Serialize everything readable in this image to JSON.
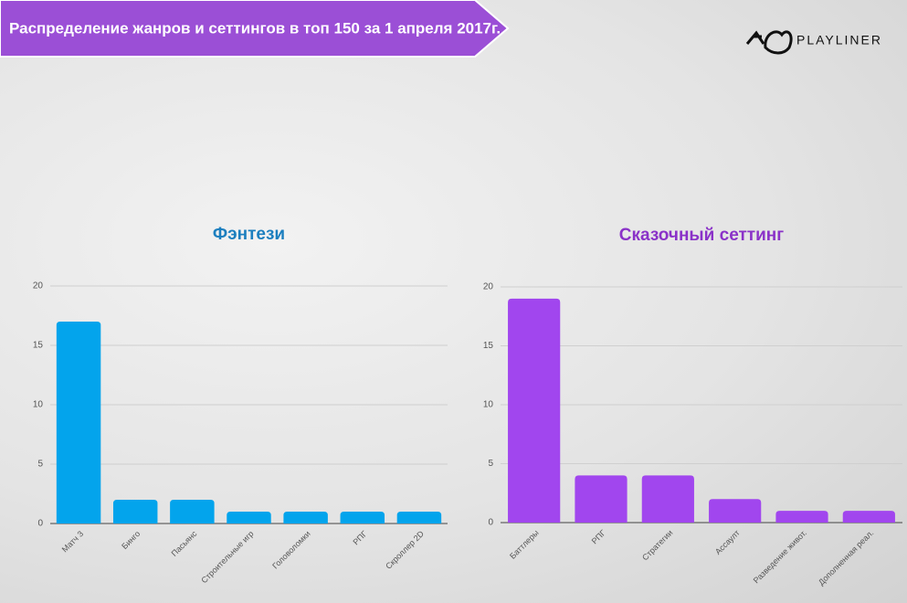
{
  "header": {
    "title": "Распределение жанров и сеттингов в топ 150 за 1 апреля 2017г.",
    "logo": "PLAYLINER"
  },
  "chart_data": [
    {
      "type": "bar",
      "title": "Фэнтези",
      "title_color": "#1c7fbf",
      "color": "#03a4ec",
      "categories": [
        "Матч 3",
        "Бинго",
        "Пасьянс",
        "Строительные игр",
        "Головоломки",
        "РПГ",
        "Скроллер 2D"
      ],
      "values": [
        17,
        2,
        2,
        1,
        1,
        1,
        1
      ],
      "ylim": [
        0,
        20
      ],
      "yticks": [
        0,
        5,
        10,
        15,
        20
      ],
      "grid": true
    },
    {
      "type": "bar",
      "title": "Сказочный сеттинг",
      "title_color": "#8a32c8",
      "color": "#a146ee",
      "categories": [
        "Баттлеры",
        "РПГ",
        "Стратегии",
        "Ассаулт",
        "Разведение живот.",
        "Дополненная реал."
      ],
      "values": [
        19,
        4,
        4,
        2,
        1,
        1
      ],
      "ylim": [
        0,
        20
      ],
      "yticks": [
        0,
        5,
        10,
        15,
        20
      ],
      "grid": true
    }
  ]
}
